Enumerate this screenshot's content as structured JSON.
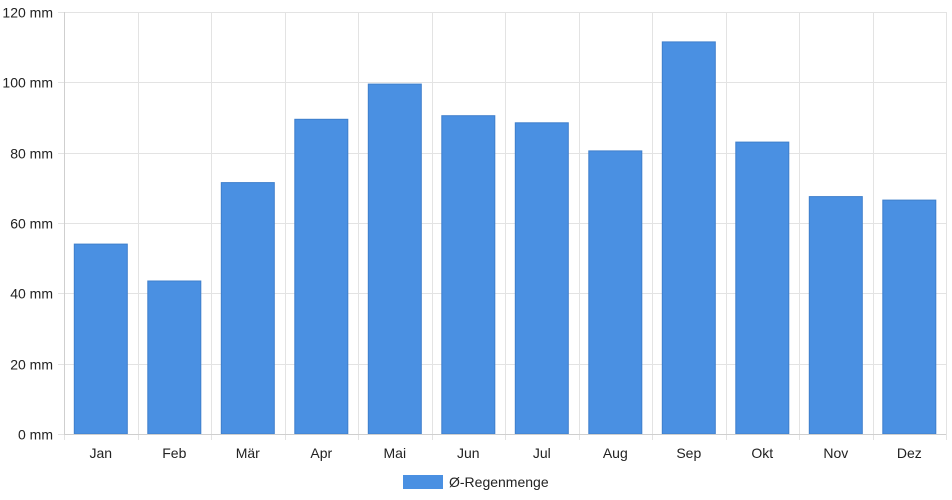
{
  "chart_data": {
    "type": "bar",
    "categories": [
      "Jan",
      "Feb",
      "Mär",
      "Apr",
      "Mai",
      "Jun",
      "Jul",
      "Aug",
      "Sep",
      "Okt",
      "Nov",
      "Dez"
    ],
    "series": [
      {
        "name": "Ø-Regenmenge",
        "color": "#4a90e2",
        "values": [
          54,
          43.5,
          71.5,
          89.5,
          99.5,
          90.5,
          88.5,
          80.5,
          111.5,
          83,
          67.5,
          66.5
        ]
      }
    ],
    "y_ticks": [
      0,
      20,
      40,
      60,
      80,
      100,
      120
    ],
    "y_unit": "mm",
    "ylim": [
      0,
      120
    ],
    "grid": true,
    "legend_position": "bottom-center",
    "title": "",
    "xlabel": "",
    "ylabel": ""
  }
}
